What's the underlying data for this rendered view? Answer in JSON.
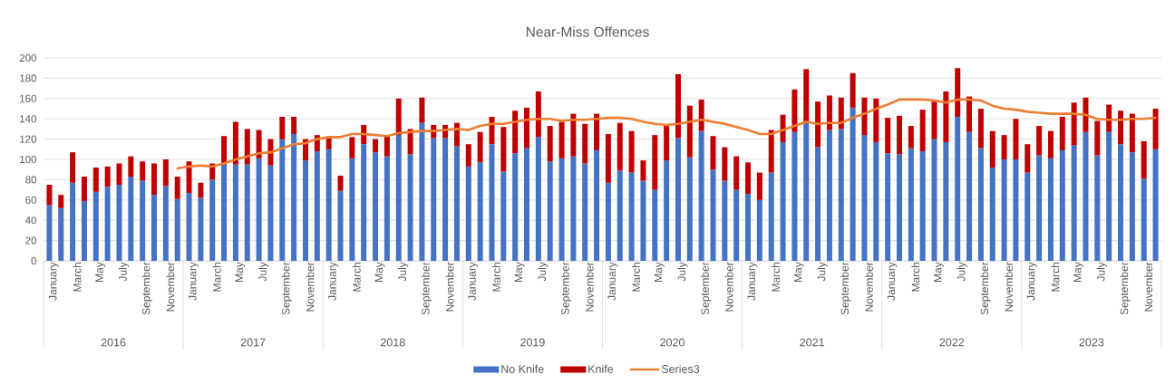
{
  "chart_data": {
    "type": "bar",
    "title": "Near-Miss Offences",
    "stacked": true,
    "grid": "y",
    "legend": "bottom",
    "ylim": [
      0,
      200
    ],
    "yticks": [
      0,
      20,
      40,
      60,
      80,
      100,
      120,
      140,
      160,
      180,
      200
    ],
    "categories": [
      "January",
      null,
      "March",
      null,
      "May",
      null,
      "July",
      null,
      "September",
      null,
      "November",
      null,
      "January",
      null,
      "March",
      null,
      "May",
      null,
      "July",
      null,
      "September",
      null,
      "November",
      null,
      "January",
      null,
      "March",
      null,
      "May",
      null,
      "July",
      null,
      "September",
      null,
      "November",
      null,
      "January",
      null,
      "March",
      null,
      "May",
      null,
      "July",
      null,
      "September",
      null,
      "November",
      null,
      "January",
      null,
      "March",
      null,
      "May",
      null,
      "July",
      null,
      "September",
      null,
      "November",
      null,
      "January",
      null,
      "March",
      null,
      "May",
      null,
      "July",
      null,
      "September",
      null,
      "November",
      null,
      "January",
      null,
      "March",
      null,
      "May",
      null,
      "July",
      null,
      "September",
      null,
      "November",
      null,
      "January",
      null,
      "March",
      null,
      "May",
      null,
      "July",
      null,
      "September",
      null,
      "November",
      null
    ],
    "annotations": [
      "2016",
      "2017",
      "2018",
      "2019",
      "2020",
      "2021",
      "2022",
      "2023"
    ],
    "series": [
      {
        "name": "No Knife",
        "color": "#4472c4",
        "values": [
          55,
          52,
          77,
          59,
          68,
          73,
          75,
          83,
          79,
          65,
          74,
          61,
          67,
          62,
          80,
          95,
          95,
          95,
          101,
          94,
          120,
          125,
          99,
          108,
          110,
          69,
          101,
          115,
          107,
          103,
          124,
          105,
          136,
          121,
          121,
          113,
          93,
          97,
          115,
          88,
          106,
          111,
          122,
          98,
          101,
          103,
          96,
          109,
          77,
          89,
          87,
          79,
          70,
          99,
          121,
          102,
          128,
          90,
          79,
          70,
          66,
          60,
          87,
          117,
          127,
          136,
          112,
          129,
          130,
          151,
          124,
          117,
          106,
          105,
          111,
          108,
          120,
          117,
          142,
          127,
          111,
          92,
          100,
          100,
          87,
          104,
          101,
          109,
          114,
          127,
          104,
          127,
          115,
          107,
          81,
          110
        ]
      },
      {
        "name": "Knife",
        "color": "#c00000",
        "values": [
          20,
          13,
          30,
          24,
          24,
          20,
          21,
          20,
          19,
          31,
          26,
          22,
          31,
          15,
          16,
          28,
          42,
          35,
          28,
          26,
          22,
          17,
          21,
          16,
          11,
          15,
          21,
          19,
          13,
          20,
          36,
          25,
          25,
          13,
          13,
          23,
          22,
          30,
          27,
          44,
          42,
          40,
          45,
          35,
          36,
          42,
          39,
          36,
          48,
          47,
          41,
          20,
          54,
          34,
          63,
          51,
          31,
          33,
          33,
          33,
          31,
          27,
          42,
          27,
          42,
          53,
          45,
          34,
          31,
          34,
          37,
          43,
          35,
          38,
          22,
          41,
          37,
          50,
          48,
          35,
          39,
          36,
          24,
          40,
          28,
          29,
          27,
          33,
          42,
          34,
          34,
          27,
          33,
          38,
          37,
          40
        ]
      },
      {
        "name": "Series3",
        "type": "line",
        "color": "#ed7d31",
        "values": [
          null,
          null,
          null,
          null,
          null,
          null,
          null,
          null,
          null,
          null,
          null,
          91,
          93,
          94,
          93,
          96,
          100,
          103,
          106,
          107,
          111,
          115,
          116,
          120,
          122,
          122,
          125,
          125,
          124,
          123,
          126,
          127,
          128,
          128,
          129,
          130,
          129,
          133,
          135,
          135,
          137,
          139,
          140,
          140,
          138,
          139,
          139,
          140,
          141,
          141,
          140,
          137,
          135,
          134,
          135,
          137,
          139,
          137,
          135,
          132,
          129,
          125,
          125,
          129,
          133,
          137,
          135,
          136,
          136,
          141,
          145,
          150,
          154,
          159,
          159,
          159,
          158,
          156,
          159,
          159,
          158,
          153,
          150,
          149,
          147,
          146,
          145,
          145,
          145,
          144,
          140,
          139,
          139,
          140,
          140,
          141
        ]
      }
    ]
  }
}
